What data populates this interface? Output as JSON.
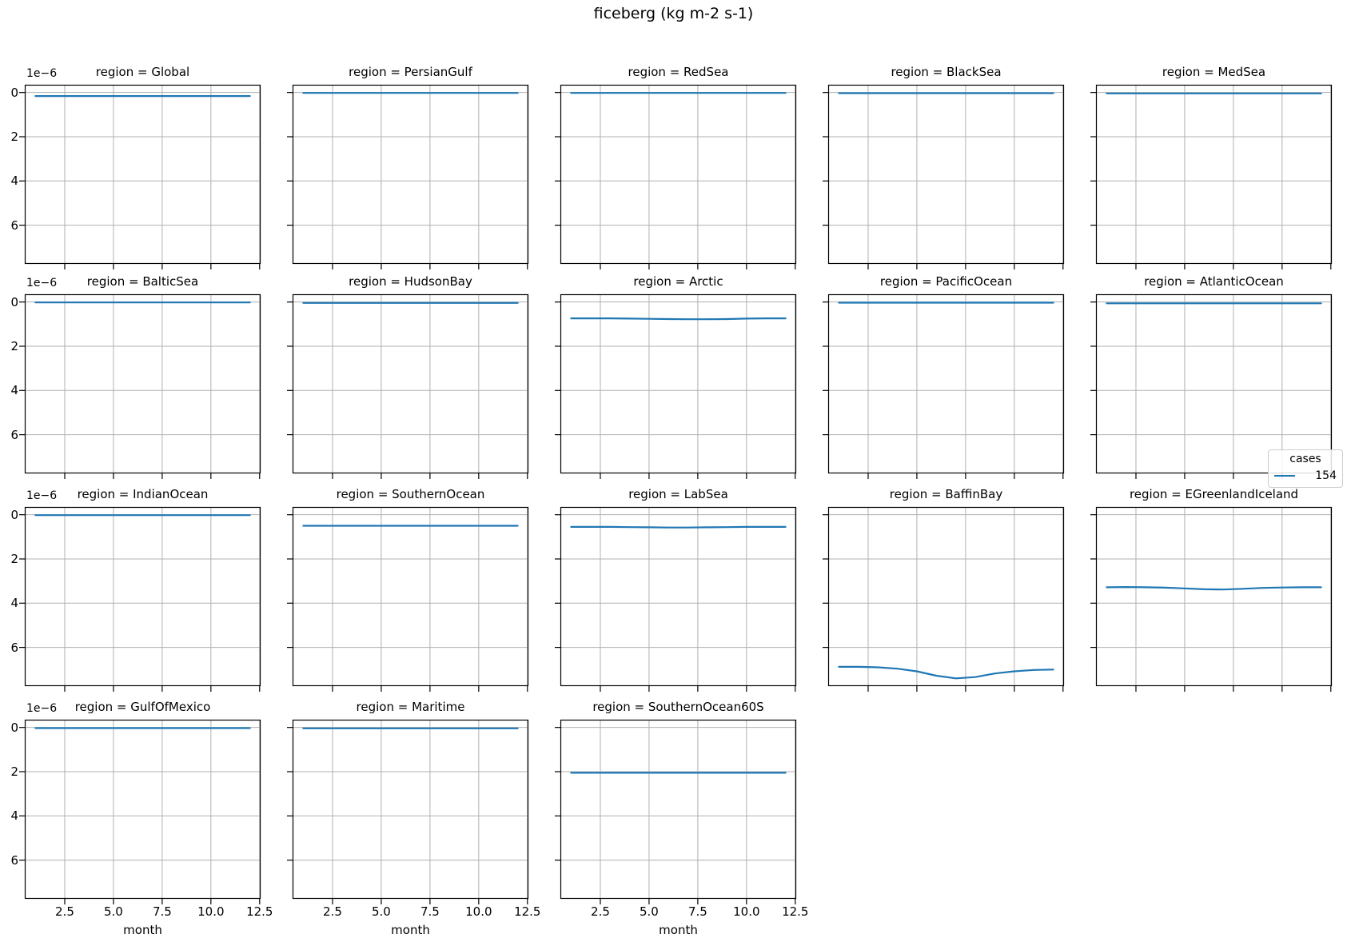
{
  "suptitle": "ficeberg (kg m-2 s-1)",
  "legend": {
    "title": "cases",
    "entries": [
      {
        "label": "154",
        "color": "#1f77b4"
      }
    ]
  },
  "colors": {
    "line": "#1f77b4",
    "grid": "#b0b0b0",
    "spine": "#000000",
    "background": "#ffffff",
    "legend_border": "#cccccc"
  },
  "chart_data": {
    "type": "line",
    "title": "ficeberg (kg m-2 s-1)",
    "xlabel": "month",
    "x": [
      1,
      2,
      3,
      4,
      5,
      6,
      7,
      8,
      9,
      10,
      11,
      12
    ],
    "xlim": [
      0.45,
      12.55
    ],
    "x_ticks": [
      2.5,
      5.0,
      7.5,
      10.0,
      12.5
    ],
    "x_tick_labels": [
      "2.5",
      "5.0",
      "7.5",
      "10.0",
      "12.5"
    ],
    "y_offset_label": "1e−6",
    "y_units": "values are in units of 1e-6 kg m-2 s-1",
    "y_axis_inverted": true,
    "ylim_topdown": [
      -0.35,
      7.75
    ],
    "y_ticks": [
      0,
      2,
      4,
      6
    ],
    "y_tick_labels": [
      "0",
      "2",
      "4",
      "6"
    ],
    "grid": true,
    "grid_shape": [
      4,
      5
    ],
    "legend_title": "cases",
    "series_label": "154",
    "line_color": "#1f77b4",
    "grid_color": "#b0b0b0",
    "facets": [
      {
        "region": "Global",
        "title": "region = Global",
        "values": [
          0.16,
          0.16,
          0.16,
          0.16,
          0.16,
          0.16,
          0.16,
          0.16,
          0.16,
          0.16,
          0.16,
          0.16
        ]
      },
      {
        "region": "PersianGulf",
        "title": "region = PersianGulf",
        "values": [
          0.02,
          0.02,
          0.02,
          0.02,
          0.02,
          0.02,
          0.02,
          0.02,
          0.02,
          0.02,
          0.02,
          0.02
        ]
      },
      {
        "region": "RedSea",
        "title": "region = RedSea",
        "values": [
          0.02,
          0.02,
          0.02,
          0.02,
          0.02,
          0.02,
          0.02,
          0.02,
          0.02,
          0.02,
          0.02,
          0.02
        ]
      },
      {
        "region": "BlackSea",
        "title": "region = BlackSea",
        "values": [
          0.03,
          0.03,
          0.03,
          0.03,
          0.03,
          0.03,
          0.03,
          0.03,
          0.03,
          0.03,
          0.03,
          0.03
        ]
      },
      {
        "region": "MedSea",
        "title": "region = MedSea",
        "values": [
          0.04,
          0.04,
          0.04,
          0.04,
          0.04,
          0.04,
          0.04,
          0.04,
          0.04,
          0.04,
          0.04,
          0.04
        ]
      },
      {
        "region": "BalticSea",
        "title": "region = BalticSea",
        "values": [
          0.02,
          0.02,
          0.02,
          0.02,
          0.02,
          0.02,
          0.02,
          0.02,
          0.02,
          0.02,
          0.02,
          0.02
        ]
      },
      {
        "region": "HudsonBay",
        "title": "region = HudsonBay",
        "values": [
          0.04,
          0.04,
          0.04,
          0.04,
          0.04,
          0.04,
          0.04,
          0.04,
          0.04,
          0.04,
          0.04,
          0.04
        ]
      },
      {
        "region": "Arctic",
        "title": "region = Arctic",
        "values": [
          0.74,
          0.74,
          0.74,
          0.75,
          0.76,
          0.77,
          0.78,
          0.78,
          0.77,
          0.75,
          0.74,
          0.74
        ]
      },
      {
        "region": "PacificOcean",
        "title": "region = PacificOcean",
        "values": [
          0.03,
          0.03,
          0.03,
          0.03,
          0.03,
          0.03,
          0.03,
          0.03,
          0.03,
          0.03,
          0.03,
          0.03
        ]
      },
      {
        "region": "AtlanticOcean",
        "title": "region = AtlanticOcean",
        "values": [
          0.06,
          0.06,
          0.06,
          0.06,
          0.06,
          0.06,
          0.06,
          0.06,
          0.06,
          0.06,
          0.06,
          0.06
        ]
      },
      {
        "region": "IndianOcean",
        "title": "region = IndianOcean",
        "values": [
          0.02,
          0.02,
          0.02,
          0.02,
          0.02,
          0.02,
          0.02,
          0.02,
          0.02,
          0.02,
          0.02,
          0.02
        ]
      },
      {
        "region": "SouthernOcean",
        "title": "region = SouthernOcean",
        "values": [
          0.5,
          0.5,
          0.5,
          0.5,
          0.5,
          0.5,
          0.5,
          0.5,
          0.5,
          0.5,
          0.5,
          0.5
        ]
      },
      {
        "region": "LabSea",
        "title": "region = LabSea",
        "values": [
          0.55,
          0.55,
          0.55,
          0.56,
          0.57,
          0.58,
          0.58,
          0.57,
          0.56,
          0.55,
          0.55,
          0.55
        ]
      },
      {
        "region": "BaffinBay",
        "title": "region = BaffinBay",
        "values": [
          6.88,
          6.88,
          6.9,
          6.96,
          7.08,
          7.28,
          7.4,
          7.34,
          7.18,
          7.08,
          7.02,
          7.0
        ]
      },
      {
        "region": "EGreenlandIceland",
        "title": "region = EGreenlandIceland",
        "values": [
          3.28,
          3.27,
          3.28,
          3.3,
          3.33,
          3.37,
          3.38,
          3.35,
          3.31,
          3.29,
          3.28,
          3.28
        ]
      },
      {
        "region": "GulfOfMexico",
        "title": "region = GulfOfMexico",
        "values": [
          0.03,
          0.03,
          0.03,
          0.03,
          0.03,
          0.03,
          0.03,
          0.03,
          0.03,
          0.03,
          0.03,
          0.03
        ]
      },
      {
        "region": "Maritime",
        "title": "region = Maritime",
        "values": [
          0.04,
          0.04,
          0.04,
          0.04,
          0.04,
          0.04,
          0.04,
          0.04,
          0.04,
          0.04,
          0.04,
          0.04
        ]
      },
      {
        "region": "SouthernOcean60S",
        "title": "region = SouthernOcean60S",
        "values": [
          2.05,
          2.05,
          2.05,
          2.05,
          2.05,
          2.05,
          2.05,
          2.05,
          2.05,
          2.05,
          2.05,
          2.05
        ]
      }
    ]
  }
}
